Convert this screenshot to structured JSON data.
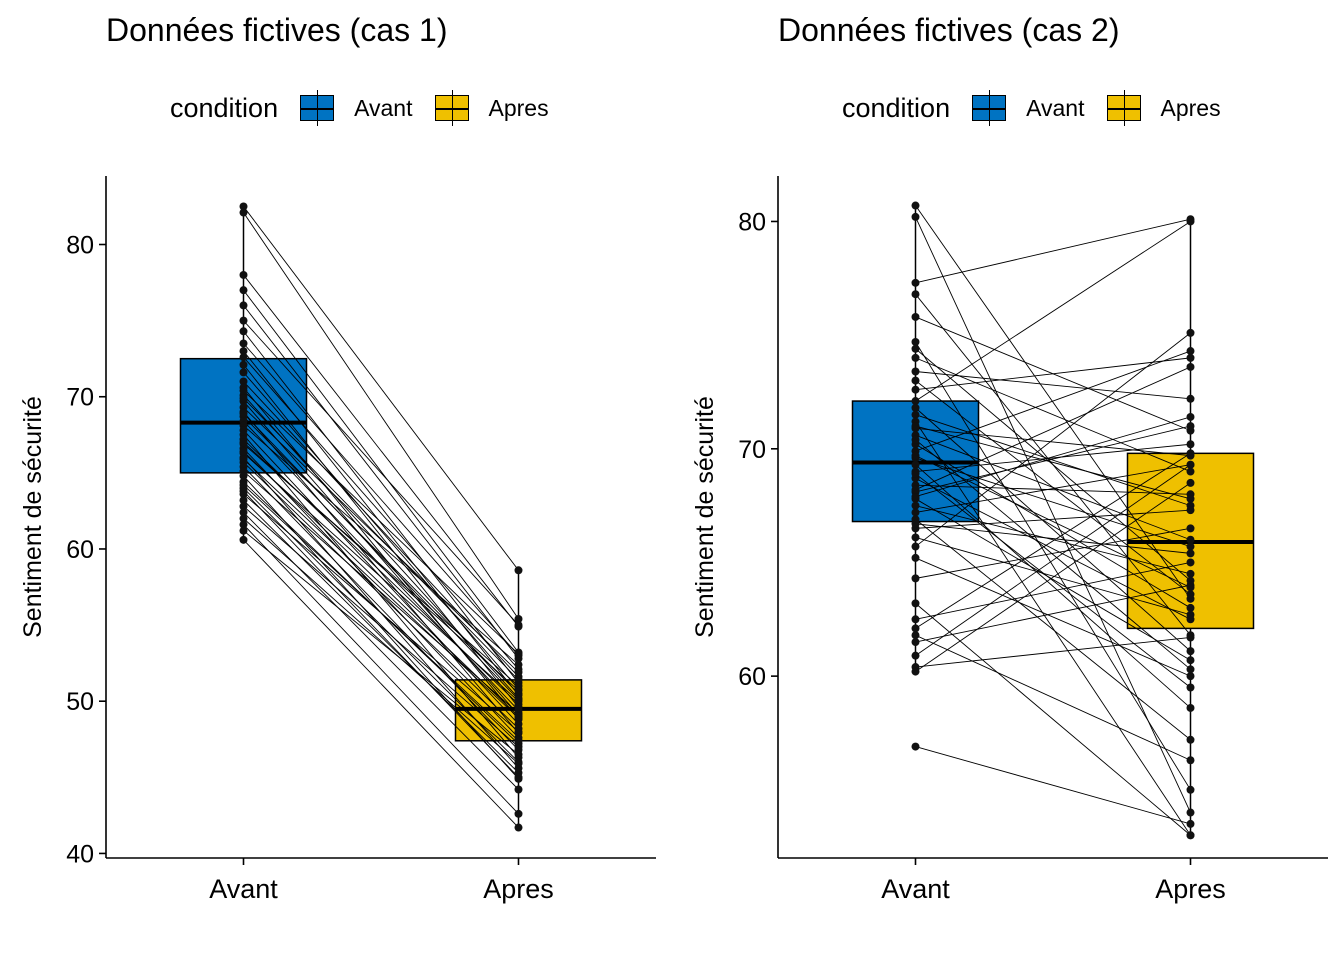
{
  "chart_data": [
    {
      "type": "box",
      "title": "Données fictives (cas 1)",
      "xlabel": "",
      "ylabel": "Sentiment de sécurité",
      "categories": [
        "Avant",
        "Apres"
      ],
      "ylim": [
        39.7,
        84.5
      ],
      "yticks": [
        40,
        50,
        60,
        70,
        80
      ],
      "grid": false,
      "legend": {
        "title": "condition",
        "position": "top",
        "items": [
          {
            "label": "Avant",
            "color": "#0073C2"
          },
          {
            "label": "Apres",
            "color": "#EFC000"
          }
        ]
      },
      "boxes": [
        {
          "category": "Avant",
          "q1": 65.0,
          "median": 68.3,
          "q3": 72.5,
          "whisker_low": 60.6,
          "whisker_high": 82.5,
          "color": "#0073C2"
        },
        {
          "category": "Apres",
          "q1": 47.4,
          "median": 49.5,
          "q3": 51.4,
          "whisker_low": 41.7,
          "whisker_high": 58.6,
          "color": "#EFC000"
        }
      ],
      "paired_points": [
        [
          82.5,
          58.6
        ],
        [
          82.1,
          55.4
        ],
        [
          78.0,
          54.9
        ],
        [
          77.0,
          53.2
        ],
        [
          76.0,
          52.8
        ],
        [
          75.0,
          55.0
        ],
        [
          74.3,
          51.2
        ],
        [
          73.5,
          53.0
        ],
        [
          73.0,
          50.4
        ],
        [
          72.6,
          52.1
        ],
        [
          72.1,
          49.6
        ],
        [
          71.6,
          50.8
        ],
        [
          71.0,
          51.6
        ],
        [
          70.6,
          48.8
        ],
        [
          70.1,
          50.2
        ],
        [
          69.7,
          49.1
        ],
        [
          69.3,
          51.9
        ],
        [
          69.0,
          47.9
        ],
        [
          68.7,
          50.5
        ],
        [
          68.4,
          49.4
        ],
        [
          68.1,
          52.4
        ],
        [
          67.8,
          48.5
        ],
        [
          67.5,
          46.3
        ],
        [
          67.2,
          49.8
        ],
        [
          66.9,
          51.0
        ],
        [
          66.6,
          47.6
        ],
        [
          66.3,
          50.0
        ],
        [
          66.0,
          45.6
        ],
        [
          65.7,
          48.2
        ],
        [
          65.4,
          46.8
        ],
        [
          65.1,
          49.2
        ],
        [
          64.8,
          44.9
        ],
        [
          64.4,
          47.2
        ],
        [
          64.0,
          46.0
        ],
        [
          63.6,
          48.0
        ],
        [
          63.2,
          45.3
        ],
        [
          62.8,
          47.0
        ],
        [
          62.4,
          44.2
        ],
        [
          62.0,
          45.9
        ],
        [
          61.6,
          42.6
        ],
        [
          61.2,
          46.5
        ],
        [
          60.6,
          41.7
        ],
        [
          67.0,
          50.7
        ],
        [
          69.9,
          51.4
        ],
        [
          65.9,
          48.9
        ],
        [
          64.2,
          47.4
        ],
        [
          70.4,
          53.1
        ],
        [
          63.8,
          45.0
        ],
        [
          68.9,
          50.1
        ],
        [
          66.4,
          49.0
        ]
      ]
    },
    {
      "type": "box",
      "title": "Données fictives (cas 2)",
      "xlabel": "",
      "ylabel": "Sentiment de sécurité",
      "categories": [
        "Avant",
        "Apres"
      ],
      "ylim": [
        52.0,
        82.0
      ],
      "yticks": [
        60,
        70,
        80
      ],
      "grid": false,
      "legend": {
        "title": "condition",
        "position": "top",
        "items": [
          {
            "label": "Avant",
            "color": "#0073C2"
          },
          {
            "label": "Apres",
            "color": "#EFC000"
          }
        ]
      },
      "boxes": [
        {
          "category": "Avant",
          "q1": 66.8,
          "median": 69.4,
          "q3": 72.1,
          "whisker_low": 60.2,
          "whisker_high": 80.7,
          "color": "#0073C2"
        },
        {
          "category": "Apres",
          "q1": 62.1,
          "median": 65.9,
          "q3": 69.8,
          "whisker_low": 53.0,
          "whisker_high": 80.1,
          "color": "#EFC000"
        }
      ],
      "paired_points": [
        [
          80.7,
          63.4
        ],
        [
          80.2,
          54.0
        ],
        [
          77.3,
          80.1
        ],
        [
          76.8,
          61.8
        ],
        [
          75.8,
          70.8
        ],
        [
          74.7,
          55.0
        ],
        [
          74.4,
          64.2
        ],
        [
          74.0,
          69.0
        ],
        [
          73.4,
          72.2
        ],
        [
          72.1,
          80.0
        ],
        [
          71.8,
          61.1
        ],
        [
          71.5,
          67.5
        ],
        [
          71.2,
          53.0
        ],
        [
          70.9,
          69.7
        ],
        [
          70.6,
          66.0
        ],
        [
          70.2,
          63.0
        ],
        [
          69.9,
          74.3
        ],
        [
          69.6,
          65.7
        ],
        [
          69.3,
          58.6
        ],
        [
          69.0,
          70.2
        ],
        [
          68.7,
          62.5
        ],
        [
          68.4,
          68.0
        ],
        [
          68.1,
          71.0
        ],
        [
          67.8,
          60.7
        ],
        [
          67.5,
          64.5
        ],
        [
          67.2,
          69.3
        ],
        [
          66.9,
          57.2
        ],
        [
          66.5,
          67.3
        ],
        [
          66.1,
          62.7
        ],
        [
          65.7,
          75.1
        ],
        [
          65.2,
          60.0
        ],
        [
          64.3,
          66.5
        ],
        [
          63.2,
          53.0
        ],
        [
          62.5,
          65.0
        ],
        [
          62.1,
          69.8
        ],
        [
          61.8,
          56.3
        ],
        [
          61.5,
          64.0
        ],
        [
          60.9,
          69.3
        ],
        [
          60.4,
          61.7
        ],
        [
          60.2,
          68.5
        ],
        [
          56.9,
          53.5
        ],
        [
          73.0,
          63.6
        ],
        [
          71.0,
          67.8
        ],
        [
          68.9,
          59.5
        ],
        [
          72.6,
          74.0
        ],
        [
          69.7,
          63.9
        ],
        [
          67.9,
          71.4
        ],
        [
          66.7,
          65.4
        ],
        [
          70.4,
          60.3
        ],
        [
          68.2,
          73.6
        ]
      ]
    }
  ]
}
